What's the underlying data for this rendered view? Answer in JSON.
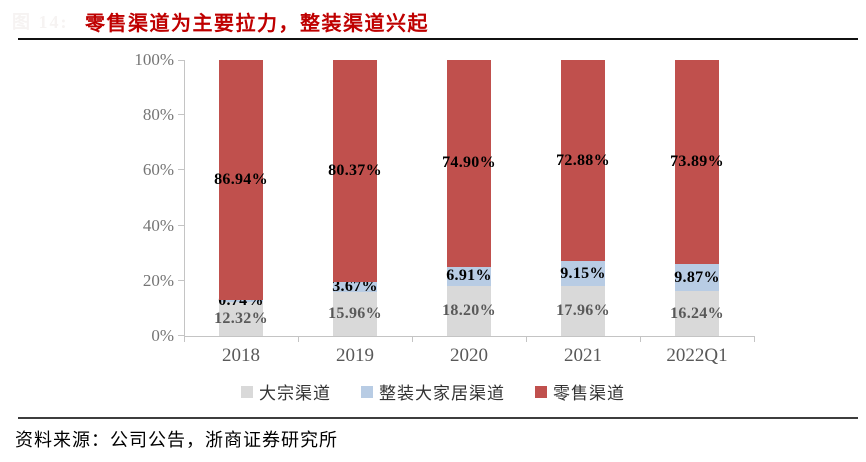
{
  "figure_label": "图 14:",
  "header": {
    "title": "零售渠道为主要拉力，整装渠道兴起"
  },
  "footer": {
    "source": "资料来源：公司公告，浙商证券研究所"
  },
  "colors": {
    "title_red": "#bf0000",
    "axis_gray": "#c4c4c4",
    "ytick_text": "#757575",
    "xtick_text": "#595959"
  },
  "chart_data": {
    "type": "bar",
    "stacked": true,
    "percent_stacked": true,
    "title": "零售渠道为主要拉力，整装渠道兴起",
    "categories": [
      "2018",
      "2019",
      "2020",
      "2021",
      "2022Q1"
    ],
    "series": [
      {
        "key": "dazong-channel",
        "name": "大宗渠道",
        "color": "#d9d9d9",
        "label_color": "#595959",
        "values": [
          12.32,
          15.96,
          18.2,
          17.96,
          16.24
        ]
      },
      {
        "key": "zhengzhuang-channel",
        "name": "整装大家居渠道",
        "color": "#b8cce4",
        "label_color": "#000000",
        "values": [
          0.74,
          3.67,
          6.91,
          9.15,
          9.87
        ]
      },
      {
        "key": "retail-channel",
        "name": "零售渠道",
        "color": "#c0504d",
        "label_color": "#000000",
        "values": [
          86.94,
          80.37,
          74.9,
          72.88,
          73.89
        ]
      }
    ],
    "ylim": [
      0,
      100
    ],
    "ytick_labels": [
      "0%",
      "20%",
      "40%",
      "60%",
      "80%",
      "100%"
    ],
    "xlabel": "",
    "ylabel": "",
    "grid": false,
    "legend_position": "bottom",
    "data_label_format": "0.00%"
  }
}
